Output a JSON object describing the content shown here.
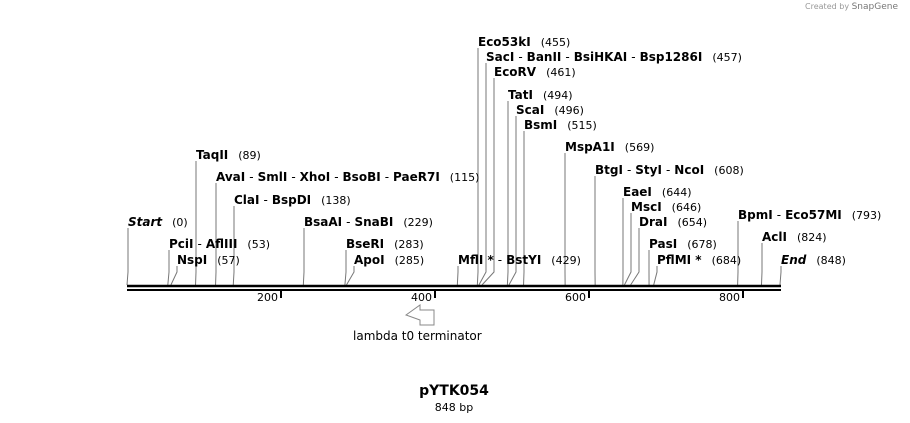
{
  "credit": {
    "prefix": "Created by",
    "brand": "SnapGene"
  },
  "plasmid": {
    "name": "pYTK054",
    "length_label": "848 bp",
    "length": 848
  },
  "ticks": [
    {
      "value": 200,
      "label": "200"
    },
    {
      "value": 400,
      "label": "400"
    },
    {
      "value": 600,
      "label": "600"
    },
    {
      "value": 800,
      "label": "800"
    }
  ],
  "feature": {
    "label": "lambda t0 terminator",
    "direction": "reverse"
  },
  "sites": [
    {
      "names": [
        "Eco53kI"
      ],
      "pos": 455,
      "pos_label": "(455)"
    },
    {
      "names": [
        "SacI",
        "BanII",
        "BsiHKAI",
        "Bsp1286I"
      ],
      "pos": 457,
      "pos_label": "(457)"
    },
    {
      "names": [
        "EcoRV"
      ],
      "pos": 461,
      "pos_label": "(461)"
    },
    {
      "names": [
        "TatI"
      ],
      "pos": 494,
      "pos_label": "(494)"
    },
    {
      "names": [
        "ScaI"
      ],
      "pos": 496,
      "pos_label": "(496)"
    },
    {
      "names": [
        "BsmI"
      ],
      "pos": 515,
      "pos_label": "(515)"
    },
    {
      "names": [
        "MspA1I"
      ],
      "pos": 569,
      "pos_label": "(569)"
    },
    {
      "names": [
        "TaqII"
      ],
      "pos": 89,
      "pos_label": "(89)"
    },
    {
      "names": [
        "BtgI",
        "StyI",
        "NcoI"
      ],
      "pos": 608,
      "pos_label": "(608)"
    },
    {
      "names": [
        "AvaI",
        "SmlI",
        "XhoI",
        "BsoBI",
        "PaeR7I"
      ],
      "pos": 115,
      "pos_label": "(115)"
    },
    {
      "names": [
        "EaeI"
      ],
      "pos": 644,
      "pos_label": "(644)"
    },
    {
      "names": [
        "ClaI",
        "BspDI"
      ],
      "pos": 138,
      "pos_label": "(138)"
    },
    {
      "names": [
        "MscI"
      ],
      "pos": 646,
      "pos_label": "(646)"
    },
    {
      "names": [
        "BpmI",
        "Eco57MI"
      ],
      "pos": 793,
      "pos_label": "(793)"
    },
    {
      "names": [
        "DraI"
      ],
      "pos": 654,
      "pos_label": "(654)"
    },
    {
      "names": [
        "Start"
      ],
      "pos": 0,
      "pos_label": "(0)",
      "italic": true
    },
    {
      "names": [
        "BsaAI",
        "SnaBI"
      ],
      "pos": 229,
      "pos_label": "(229)"
    },
    {
      "names": [
        "AclI"
      ],
      "pos": 824,
      "pos_label": "(824)"
    },
    {
      "names": [
        "PciI",
        "AflIII"
      ],
      "pos": 53,
      "pos_label": "(53)"
    },
    {
      "names": [
        "BseRI"
      ],
      "pos": 283,
      "pos_label": "(283)"
    },
    {
      "names": [
        "PasI"
      ],
      "pos": 678,
      "pos_label": "(678)"
    },
    {
      "names": [
        "NspI"
      ],
      "pos": 57,
      "pos_label": "(57)"
    },
    {
      "names": [
        "ApoI"
      ],
      "pos": 285,
      "pos_label": "(285)"
    },
    {
      "names": [
        "MflI *",
        "BstYI"
      ],
      "pos": 429,
      "pos_label": "(429)"
    },
    {
      "names": [
        "PflMI *"
      ],
      "pos": 684,
      "pos_label": "(684)"
    },
    {
      "names": [
        "End"
      ],
      "pos": 848,
      "pos_label": "(848)",
      "italic": true
    }
  ]
}
